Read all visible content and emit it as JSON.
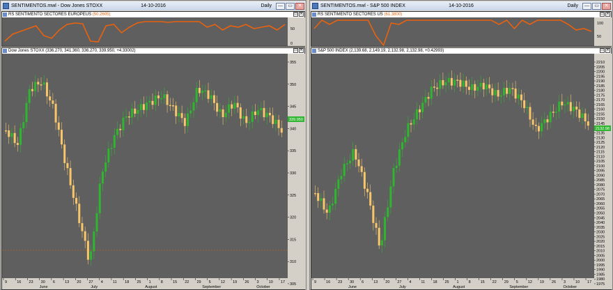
{
  "left_window": {
    "title": "SENTIMENTOS.mwl - Dow Jones STOXX",
    "date": "14-10-2016",
    "period": "Daily",
    "rsi_label": "RS SENTIMENTO SECTORES EUROPEUS",
    "rsi_value": "(50.2605)",
    "rsi_ticks": [
      "50",
      "0"
    ],
    "price_label": "Dow Jones STOXX (336.270, 341.360, 336.270, 339.950, +4.33002)",
    "price_ticks": [
      "355",
      "350",
      "345",
      "340",
      "335",
      "330",
      "325",
      "320",
      "315",
      "310",
      "305"
    ],
    "last_price_tag": "339.950",
    "date_ticks": [
      "9",
      "16",
      "23",
      "30",
      "6",
      "13",
      "20",
      "27",
      "4",
      "11",
      "18",
      "25",
      "1",
      "8",
      "15",
      "22",
      "29",
      "5",
      "12",
      "19",
      "26",
      "3",
      "10",
      "17"
    ],
    "month_labels": [
      "June",
      "July",
      "August",
      "September",
      "October"
    ]
  },
  "right_window": {
    "title": "SENTIMENTOS.mwl - S&P 500 INDEX",
    "date": "14-10-2016",
    "period": "Daily",
    "rsi_label": "RS SENTIMENTO SECTORES US",
    "rsi_value": "(61.3800)",
    "rsi_ticks": [
      "100",
      "50"
    ],
    "price_label": "S&P 500 INDEX (2,139.68, 2,149.19, 2,132.98, 2,132.98, +0.42993)",
    "price_ticks": [
      "2210",
      "2205",
      "2200",
      "2195",
      "2190",
      "2185",
      "2180",
      "2175",
      "2170",
      "2165",
      "2160",
      "2155",
      "2150",
      "2145",
      "2140",
      "2135",
      "2130",
      "2125",
      "2120",
      "2115",
      "2110",
      "2105",
      "2100",
      "2095",
      "2090",
      "2085",
      "2080",
      "2075",
      "2070",
      "2065",
      "2060",
      "2055",
      "2050",
      "2045",
      "2040",
      "2035",
      "2030",
      "2025",
      "2020",
      "2015",
      "2010",
      "2005",
      "2000",
      "1995",
      "1990",
      "1985",
      "1980",
      "1975"
    ],
    "last_price_tag": "2132.98",
    "date_ticks": [
      "9",
      "16",
      "23",
      "30",
      "6",
      "13",
      "20",
      "27",
      "4",
      "11",
      "18",
      "25",
      "1",
      "8",
      "15",
      "22",
      "29",
      "5",
      "12",
      "19",
      "26",
      "3",
      "10",
      "17"
    ],
    "month_labels": [
      "June",
      "July",
      "August",
      "September",
      "October"
    ]
  },
  "button_labels": {
    "minimize": "—",
    "restore": "▭",
    "close": "✕",
    "pane_restore": "▭",
    "pane_close": "✕"
  },
  "colors": {
    "background": "#5f5f5f",
    "up_candle": "#2fb52f",
    "down_candle": "#f7c66b",
    "rsi_line": "#e8620f",
    "ma_line": "#e5e5e5"
  }
}
